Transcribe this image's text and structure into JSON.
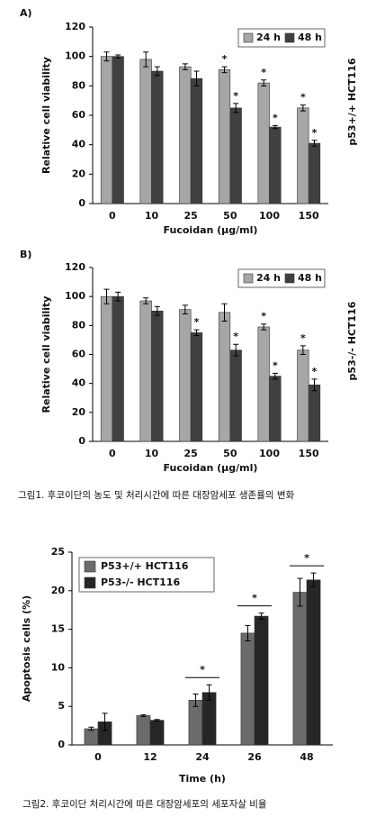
{
  "chart_data": [
    {
      "type": "bar",
      "panel": "A)",
      "ylabel": "Relative cell viability",
      "xlabel": "Fucoidan (μg/ml)",
      "side_label": "p53+/+ HCT116",
      "categories": [
        "0",
        "10",
        "25",
        "50",
        "100",
        "150"
      ],
      "series": [
        {
          "name": "24 h",
          "color": "#a6a6a6",
          "values": [
            100,
            98,
            93,
            91,
            82,
            65
          ],
          "errors": [
            3,
            5,
            2,
            2,
            2,
            2
          ],
          "significance": [
            null,
            null,
            null,
            "*",
            "*",
            "*"
          ]
        },
        {
          "name": "48 h",
          "color": "#404040",
          "values": [
            100,
            90,
            85,
            65,
            52,
            41
          ],
          "errors": [
            1,
            3,
            5,
            3,
            1,
            2
          ],
          "significance": [
            null,
            null,
            null,
            "*",
            "*",
            "*"
          ]
        }
      ],
      "ylim": [
        0,
        120
      ],
      "yticks": [
        0,
        20,
        40,
        60,
        80,
        100,
        120
      ],
      "legend": "upper right"
    },
    {
      "type": "bar",
      "panel": "B)",
      "ylabel": "Relative cell viability",
      "xlabel": "Fucoidan (μg/ml)",
      "side_label": "p53-/- HCT116",
      "categories": [
        "0",
        "10",
        "25",
        "50",
        "100",
        "150"
      ],
      "series": [
        {
          "name": "24 h",
          "color": "#a6a6a6",
          "values": [
            100,
            97,
            91,
            89,
            79,
            63
          ],
          "errors": [
            5,
            2,
            3,
            6,
            2,
            3
          ],
          "significance": [
            null,
            null,
            null,
            null,
            "*",
            "*"
          ]
        },
        {
          "name": "48 h",
          "color": "#404040",
          "values": [
            100,
            90,
            75,
            63,
            45,
            39
          ],
          "errors": [
            3,
            3,
            2,
            4,
            2,
            4
          ],
          "significance": [
            null,
            null,
            "*",
            "*",
            "*",
            "*"
          ]
        }
      ],
      "ylim": [
        0,
        120
      ],
      "yticks": [
        0,
        20,
        40,
        60,
        80,
        100,
        120
      ],
      "legend": "upper right"
    },
    {
      "type": "bar",
      "ylabel": "Apoptosis cells (%)",
      "xlabel": "Time (h)",
      "categories": [
        "0",
        "12",
        "24",
        "26",
        "48"
      ],
      "series": [
        {
          "name": "P53+/+ HCT116",
          "color": "#6b6b6b",
          "values": [
            2.1,
            3.8,
            5.8,
            14.5,
            19.8
          ],
          "errors": [
            0.2,
            0.1,
            0.8,
            1.0,
            1.8
          ]
        },
        {
          "name": "P53-/- HCT116",
          "color": "#262626",
          "values": [
            3.0,
            3.2,
            6.8,
            16.7,
            21.4
          ],
          "errors": [
            1.1,
            0.1,
            1.0,
            0.4,
            0.9
          ]
        }
      ],
      "group_significance": [
        null,
        null,
        "*",
        "*",
        "*"
      ],
      "ylim": [
        0,
        25
      ],
      "yticks": [
        0,
        5,
        10,
        15,
        20,
        25
      ],
      "legend": "upper left"
    }
  ],
  "captions": [
    "그림1. 후코이단의 농도 및 처리시간에 따른 대장암세포 생존률의 변화",
    "그림2. 후코이단 처리시간에 따른 대장암세포의 세포자살 비율"
  ]
}
